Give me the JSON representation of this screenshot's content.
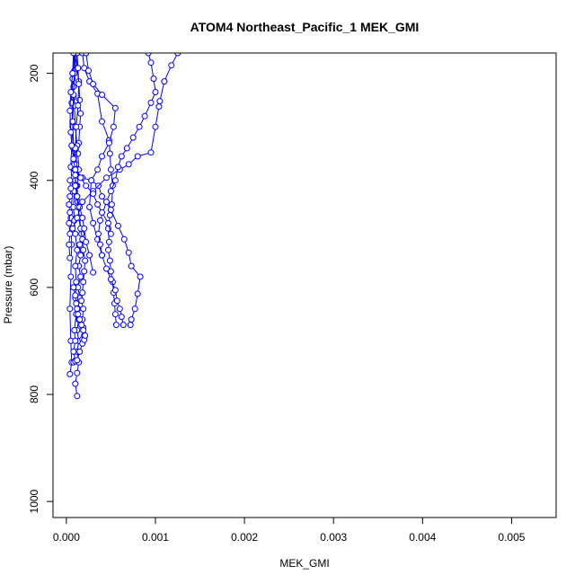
{
  "chart_data": {
    "type": "scatter",
    "title": "ATOM4 Northeast_Pacific_1 MEK_GMI",
    "xlabel": "MEK_GMI",
    "ylabel": "Pressure (mbar)",
    "xlim": [
      -0.00015,
      0.0055
    ],
    "ylim": [
      1030,
      162
    ],
    "y_reversed": true,
    "xticks": [
      0.0,
      0.001,
      0.002,
      0.003,
      0.004,
      0.005
    ],
    "xtick_labels": [
      "0.000",
      "0.001",
      "0.002",
      "0.003",
      "0.004",
      "0.005"
    ],
    "yticks": [
      200,
      400,
      600,
      800,
      1000
    ],
    "ytick_labels": [
      "200",
      "400",
      "600",
      "800",
      "1000"
    ],
    "grid": false,
    "legend": "none",
    "marker": "open-circle",
    "color": "#0000ff",
    "series": [
      {
        "values": [
          [
            4e-05,
            762
          ],
          [
            6e-05,
            740
          ],
          [
            5e-05,
            700
          ],
          [
            4e-05,
            640
          ],
          [
            5e-05,
            580
          ],
          [
            6e-05,
            520
          ],
          [
            5e-05,
            470
          ],
          [
            7e-05,
            415
          ],
          [
            5e-05,
            375
          ],
          [
            6e-05,
            335
          ],
          [
            7e-05,
            295
          ],
          [
            8e-05,
            245
          ],
          [
            7e-05,
            200
          ],
          [
            0.0001,
            162
          ]
        ]
      },
      {
        "values": [
          [
            0.00012,
            803
          ],
          [
            0.0001,
            780
          ],
          [
            0.00012,
            760
          ],
          [
            0.00014,
            740
          ],
          [
            0.00012,
            720
          ],
          [
            0.00014,
            700
          ],
          [
            0.00012,
            680
          ],
          [
            0.00014,
            660
          ],
          [
            0.00013,
            640
          ],
          [
            0.00015,
            620
          ],
          [
            0.00013,
            600
          ],
          [
            0.00016,
            580
          ],
          [
            0.00014,
            560
          ],
          [
            0.00016,
            540
          ],
          [
            0.00015,
            520
          ],
          [
            0.00017,
            500
          ],
          [
            0.00014,
            470
          ],
          [
            0.00013,
            440
          ],
          [
            0.00012,
            410
          ],
          [
            0.00014,
            380
          ],
          [
            0.00013,
            350
          ],
          [
            0.00014,
            330
          ],
          [
            0.00015,
            300
          ],
          [
            0.00016,
            275
          ],
          [
            0.00015,
            250
          ],
          [
            0.00014,
            215
          ],
          [
            0.00012,
            190
          ],
          [
            0.00011,
            162
          ]
        ]
      },
      {
        "values": [
          [
            0.0001,
            737
          ],
          [
            8e-05,
            720
          ],
          [
            0.0001,
            700
          ],
          [
            9e-05,
            680
          ],
          [
            0.00011,
            650
          ],
          [
            0.0001,
            620
          ],
          [
            0.00011,
            590
          ],
          [
            0.0001,
            560
          ],
          [
            0.00012,
            530
          ],
          [
            0.0001,
            500
          ],
          [
            9e-05,
            475
          ],
          [
            8e-05,
            450
          ],
          [
            9e-05,
            420
          ],
          [
            0.0001,
            400
          ],
          [
            0.00011,
            370
          ],
          [
            0.00012,
            335
          ],
          [
            0.0001,
            300
          ],
          [
            9e-05,
            260
          ],
          [
            8e-05,
            225
          ],
          [
            9e-05,
            195
          ],
          [
            0.00012,
            162
          ]
        ]
      },
      {
        "values": [
          [
            0.00018,
            697
          ],
          [
            0.0002,
            690
          ],
          [
            0.00019,
            675
          ],
          [
            0.00018,
            660
          ],
          [
            0.00019,
            640
          ],
          [
            0.00017,
            625
          ],
          [
            0.00018,
            610
          ],
          [
            0.00019,
            590
          ],
          [
            0.0002,
            570
          ],
          [
            0.00021,
            550
          ],
          [
            0.00019,
            530
          ],
          [
            0.00018,
            510
          ],
          [
            0.00016,
            490
          ],
          [
            0.00015,
            470
          ],
          [
            0.00013,
            450
          ],
          [
            0.00012,
            430
          ],
          [
            0.00011,
            410
          ],
          [
            9e-05,
            380
          ],
          [
            8e-05,
            340
          ],
          [
            7e-05,
            300
          ],
          [
            6e-05,
            255
          ],
          [
            7e-05,
            210
          ],
          [
            9e-05,
            162
          ]
        ]
      },
      {
        "values": [
          [
            0.00056,
            670
          ],
          [
            0.00055,
            650
          ],
          [
            0.00054,
            630
          ],
          [
            0.00053,
            610
          ],
          [
            0.00052,
            590
          ],
          [
            0.0005,
            570
          ],
          [
            0.00049,
            550
          ],
          [
            0.00047,
            530
          ],
          [
            0.00048,
            515
          ],
          [
            0.00047,
            490
          ],
          [
            0.00049,
            465
          ],
          [
            0.00051,
            445
          ],
          [
            0.00052,
            410
          ],
          [
            0.0005,
            380
          ],
          [
            0.00049,
            350
          ],
          [
            0.00048,
            325
          ],
          [
            0.0004,
            290
          ],
          [
            0.00035,
            238
          ],
          [
            0.00026,
            215
          ],
          [
            0.0002,
            190
          ],
          [
            0.00018,
            162
          ]
        ]
      },
      {
        "values": [
          [
            0.00072,
            670
          ],
          [
            0.00073,
            660
          ],
          [
            0.00077,
            640
          ],
          [
            0.0008,
            612
          ],
          [
            0.00083,
            580
          ],
          [
            0.00073,
            560
          ],
          [
            0.0007,
            535
          ],
          [
            0.00065,
            510
          ],
          [
            0.00058,
            485
          ],
          [
            0.0005,
            455
          ],
          [
            0.0004,
            430
          ],
          [
            0.00036,
            410
          ],
          [
            0.00028,
            400
          ],
          [
            0.00018,
            395
          ],
          [
            0.0001,
            380
          ],
          [
            8e-05,
            340
          ],
          [
            7e-05,
            290
          ],
          [
            8e-05,
            240
          ],
          [
            9e-05,
            200
          ],
          [
            0.0001,
            162
          ]
        ]
      },
      {
        "values": [
          [
            0.00064,
            670
          ],
          [
            0.00062,
            655
          ],
          [
            0.0006,
            640
          ],
          [
            0.00057,
            625
          ],
          [
            0.00055,
            605
          ],
          [
            0.0005,
            585
          ],
          [
            0.00045,
            565
          ],
          [
            0.0004,
            540
          ],
          [
            0.00035,
            510
          ],
          [
            0.0003,
            480
          ],
          [
            0.00026,
            450
          ],
          [
            0.00028,
            400
          ],
          [
            0.00035,
            380
          ],
          [
            0.0004,
            355
          ],
          [
            0.00048,
            330
          ],
          [
            0.00053,
            300
          ],
          [
            0.00055,
            265
          ],
          [
            0.0004,
            240
          ],
          [
            0.0003,
            220
          ],
          [
            0.00025,
            195
          ],
          [
            0.00022,
            162
          ]
        ]
      },
      {
        "values": [
          [
            0.0003,
            572
          ],
          [
            0.00026,
            540
          ],
          [
            0.00022,
            515
          ],
          [
            0.0002,
            490
          ],
          [
            0.00018,
            470
          ],
          [
            0.00015,
            450
          ],
          [
            0.00012,
            430
          ],
          [
            0.0001,
            410
          ],
          [
            0.0001,
            390
          ],
          [
            9e-05,
            370
          ],
          [
            0.0001,
            340
          ],
          [
            0.00011,
            300
          ],
          [
            0.00013,
            260
          ],
          [
            0.00014,
            220
          ],
          [
            0.00013,
            190
          ],
          [
            0.00012,
            162
          ]
        ]
      },
      {
        "values": [
          [
            7e-05,
            490
          ],
          [
            0.00012,
            470
          ],
          [
            0.00018,
            440
          ],
          [
            0.0003,
            420
          ],
          [
            0.00045,
            395
          ],
          [
            0.0006,
            380
          ],
          [
            0.0007,
            370
          ],
          [
            0.0008,
            355
          ],
          [
            0.00095,
            348
          ],
          [
            0.001,
            300
          ],
          [
            0.00104,
            262
          ],
          [
            0.00105,
            252
          ],
          [
            0.0011,
            215
          ],
          [
            0.00118,
            185
          ],
          [
            0.00125,
            162
          ]
        ]
      },
      {
        "values": [
          [
            0.0004,
            540
          ],
          [
            0.00038,
            520
          ],
          [
            0.00036,
            500
          ],
          [
            0.00038,
            475
          ],
          [
            0.00045,
            440
          ],
          [
            0.0005,
            420
          ],
          [
            0.00055,
            400
          ],
          [
            0.00058,
            375
          ],
          [
            0.00062,
            355
          ],
          [
            0.00068,
            340
          ],
          [
            0.00075,
            320
          ],
          [
            0.00082,
            300
          ],
          [
            0.00088,
            280
          ],
          [
            0.00095,
            255
          ],
          [
            0.001,
            235
          ],
          [
            0.00098,
            210
          ],
          [
            0.00095,
            180
          ],
          [
            0.00092,
            162
          ]
        ]
      },
      {
        "values": [
          [
            0.0005,
            500
          ],
          [
            0.00047,
            480
          ],
          [
            0.0004,
            460
          ],
          [
            0.00035,
            445
          ],
          [
            0.0003,
            425
          ],
          [
            0.00022,
            410
          ],
          [
            0.00016,
            395
          ],
          [
            0.0001,
            380
          ],
          [
            8e-05,
            360
          ],
          [
            6e-05,
            335
          ],
          [
            5e-05,
            310
          ],
          [
            4e-05,
            270
          ],
          [
            5e-05,
            235
          ],
          [
            7e-05,
            200
          ],
          [
            8e-05,
            162
          ]
        ]
      },
      {
        "values": [
          [
            8e-05,
            740
          ],
          [
            0.0001,
            738
          ],
          [
            0.00012,
            736
          ],
          [
            0.00015,
            720
          ],
          [
            0.00018,
            705
          ],
          [
            0.0002,
            698
          ],
          [
            0.00021,
            690
          ],
          [
            0.00019,
            680
          ],
          [
            0.00017,
            670
          ],
          [
            0.00015,
            660
          ],
          [
            0.00013,
            650
          ],
          [
            0.00012,
            640
          ],
          [
            0.00011,
            630
          ],
          [
            0.0001,
            615
          ],
          [
            8e-05,
            600
          ]
        ]
      },
      {
        "values": [
          [
            4e-05,
            545
          ],
          [
            3e-05,
            520
          ],
          [
            4e-05,
            500
          ],
          [
            3e-05,
            480
          ],
          [
            4e-05,
            460
          ],
          [
            3e-05,
            445
          ],
          [
            4e-05,
            430
          ],
          [
            5e-05,
            415
          ],
          [
            4e-05,
            400
          ]
        ]
      }
    ]
  }
}
